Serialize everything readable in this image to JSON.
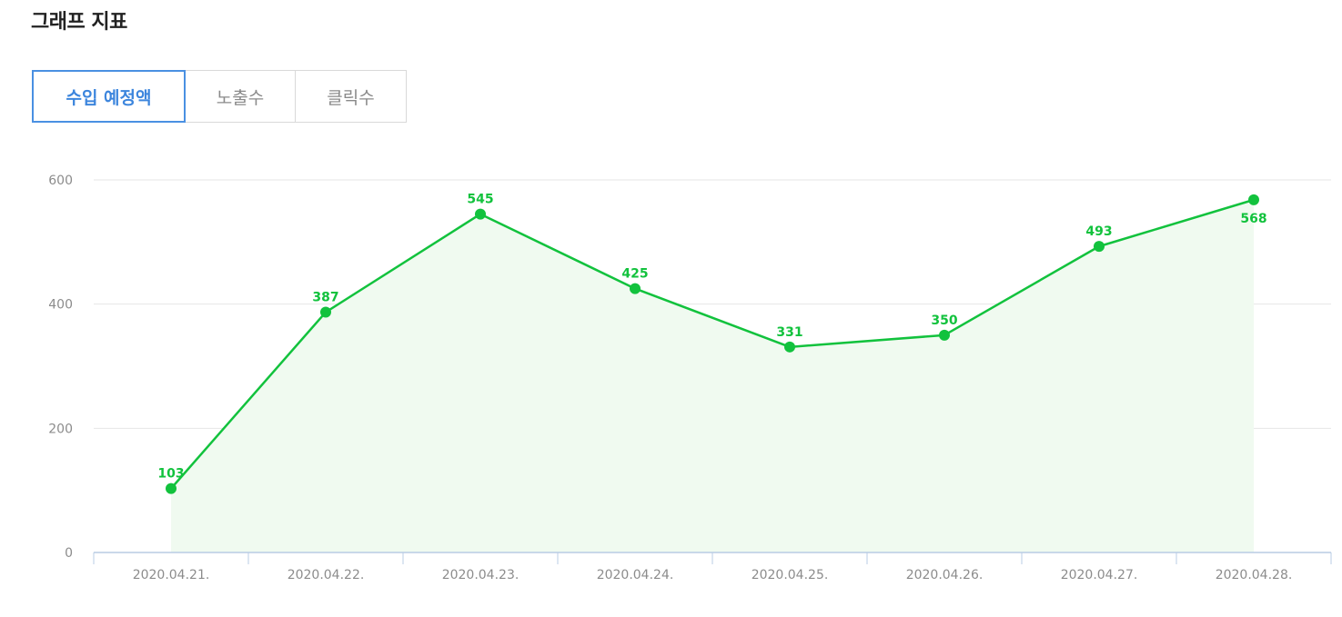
{
  "header": {
    "title": "그래프 지표"
  },
  "tabs": [
    {
      "label": "수입 예정액",
      "active": true
    },
    {
      "label": "노출수",
      "active": false
    },
    {
      "label": "클릭수",
      "active": false
    }
  ],
  "colors": {
    "accent": "#4a90e2",
    "series": "#12c23d",
    "area": "#f0faf0"
  },
  "chart_data": {
    "type": "area",
    "categories": [
      "2020.04.21.",
      "2020.04.22.",
      "2020.04.23.",
      "2020.04.24.",
      "2020.04.25.",
      "2020.04.26.",
      "2020.04.27.",
      "2020.04.28."
    ],
    "values": [
      103,
      387,
      545,
      425,
      331,
      350,
      493,
      568
    ],
    "ylim": [
      0,
      600
    ],
    "yticks": [
      0,
      200,
      400,
      600
    ],
    "grid": true,
    "data_labels": true
  }
}
